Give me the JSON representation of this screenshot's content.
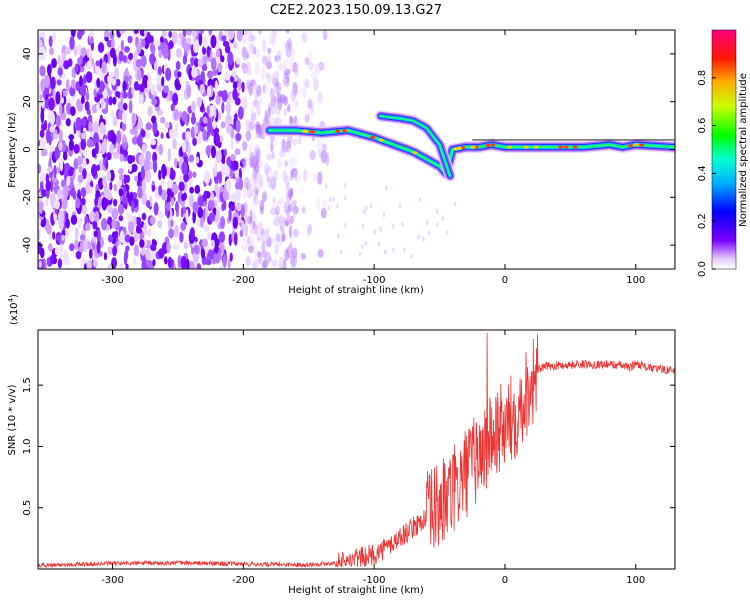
{
  "figure": {
    "title": "C2E2.2023.150.09.13.G27"
  },
  "chart_data": [
    {
      "type": "heatmap",
      "xlabel": "Height of straight line (km)",
      "ylabel": "Frequency (Hz)",
      "xlim": [
        -357,
        130
      ],
      "ylim": [
        -50,
        50
      ],
      "xticks": [
        -300,
        -200,
        -100,
        0,
        100
      ],
      "yticks": [
        -40,
        -20,
        0,
        20,
        40
      ],
      "colorbar": {
        "label": "Normalized spectral amplitude",
        "range": [
          0.0,
          1.0
        ],
        "ticks": [
          "0.0",
          "0.2",
          "0.4",
          "0.6",
          "0.8"
        ],
        "colormap": "rainbow (violet → blue → cyan → green → yellow → red → magenta)"
      },
      "features": {
        "noise_region_x": [
          -357,
          -160
        ],
        "signal_trace": {
          "x": [
            -180,
            -160,
            -140,
            -120,
            -100,
            -85,
            -70,
            -60,
            -50,
            -45,
            -40,
            -30,
            -20,
            -10,
            0,
            20,
            40,
            60,
            80,
            90,
            100,
            130
          ],
          "frequency_hz": [
            8,
            8,
            7,
            8,
            5,
            2,
            -1,
            -4,
            -7,
            -10,
            0,
            1,
            1,
            2,
            1,
            1,
            1,
            1,
            2,
            1,
            2,
            1
          ]
        },
        "secondary_branch": {
          "x": [
            -95,
            -80,
            -70,
            -60,
            -50,
            -42
          ],
          "frequency_hz": [
            14,
            13,
            12,
            9,
            2,
            -11
          ]
        }
      }
    },
    {
      "type": "line",
      "xlabel": "Height of straight line (km)",
      "ylabel": "SNR (10 * v/v)",
      "yscale_label": "(x10",
      "yscale_exp": "4",
      "yscale_suffix": ")",
      "xlim": [
        -357,
        130
      ],
      "ylim": [
        0,
        19500
      ],
      "xticks": [
        -300,
        -200,
        -100,
        0,
        100
      ],
      "yticks": [
        "0.5",
        "1.0",
        "1.5"
      ],
      "ytick_values": [
        5000,
        10000,
        15000
      ],
      "series": [
        {
          "color": "#ee3333",
          "x": [
            -357,
            -300,
            -250,
            -200,
            -150,
            -120,
            -100,
            -90,
            -80,
            -70,
            -60,
            -50,
            -45,
            -40,
            -35,
            -30,
            -25,
            -20,
            -15,
            -12,
            -10,
            -8,
            -5,
            0,
            5,
            10,
            15,
            20,
            25,
            30,
            40,
            60,
            80,
            90,
            95,
            100,
            110,
            120,
            130
          ],
          "values": [
            300,
            450,
            500,
            400,
            350,
            600,
            1200,
            1800,
            2600,
            3400,
            4200,
            5200,
            5600,
            6200,
            7000,
            7800,
            8600,
            9200,
            9800,
            10200,
            10600,
            11000,
            11300,
            11500,
            12200,
            13000,
            14200,
            15200,
            16200,
            16500,
            16600,
            16700,
            16700,
            16600,
            16400,
            16800,
            16400,
            16300,
            16200
          ]
        }
      ]
    }
  ]
}
